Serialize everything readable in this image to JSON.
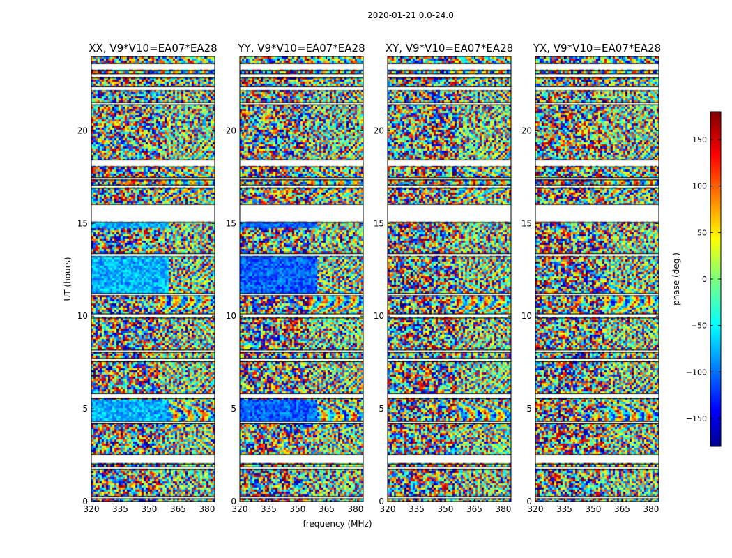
{
  "chart_data": {
    "type": "heatmap",
    "suptitle": "2020-01-21 0.0-24.0",
    "xlabel": "frequency (MHz)",
    "ylabel": "UT (hours)",
    "xlim": [
      320,
      384
    ],
    "ylim": [
      0,
      24
    ],
    "xticks": [
      320,
      335,
      350,
      365,
      380
    ],
    "yticks": [
      0,
      5,
      10,
      15,
      20
    ],
    "panels": [
      {
        "title": "XX, V9*V10=EA07*EA28",
        "pol": "XX"
      },
      {
        "title": "YY, V9*V10=EA07*EA28",
        "pol": "YY"
      },
      {
        "title": "XY, V9*V10=EA07*EA28",
        "pol": "XY"
      },
      {
        "title": "YX, V9*V10=EA07*EA28",
        "pol": "YX"
      }
    ],
    "flagged_gaps_hours": [
      [
        0.2,
        0.25
      ],
      [
        1.78,
        1.85
      ],
      [
        2.08,
        2.5
      ],
      [
        4.25,
        4.3
      ],
      [
        5.6,
        5.8
      ],
      [
        7.6,
        7.7
      ],
      [
        8.1,
        8.15
      ],
      [
        9.95,
        10.1
      ],
      [
        11.15,
        11.2
      ],
      [
        13.25,
        13.35
      ],
      [
        15.1,
        16.0
      ],
      [
        16.95,
        17.05
      ],
      [
        17.4,
        17.45
      ],
      [
        18.1,
        18.4
      ],
      [
        21.45,
        21.5
      ],
      [
        22.2,
        22.35
      ],
      [
        22.9,
        23.05
      ],
      [
        23.3,
        23.6
      ]
    ],
    "colorbar": {
      "label": "phase (deg.)",
      "range": [
        -180,
        180
      ],
      "ticks": [
        150,
        100,
        50,
        0,
        -50,
        -100,
        -150
      ],
      "tick_labels": [
        "150",
        "100",
        "50",
        "0",
        "−50",
        "−100",
        "−150"
      ],
      "colormap": "jet"
    }
  }
}
